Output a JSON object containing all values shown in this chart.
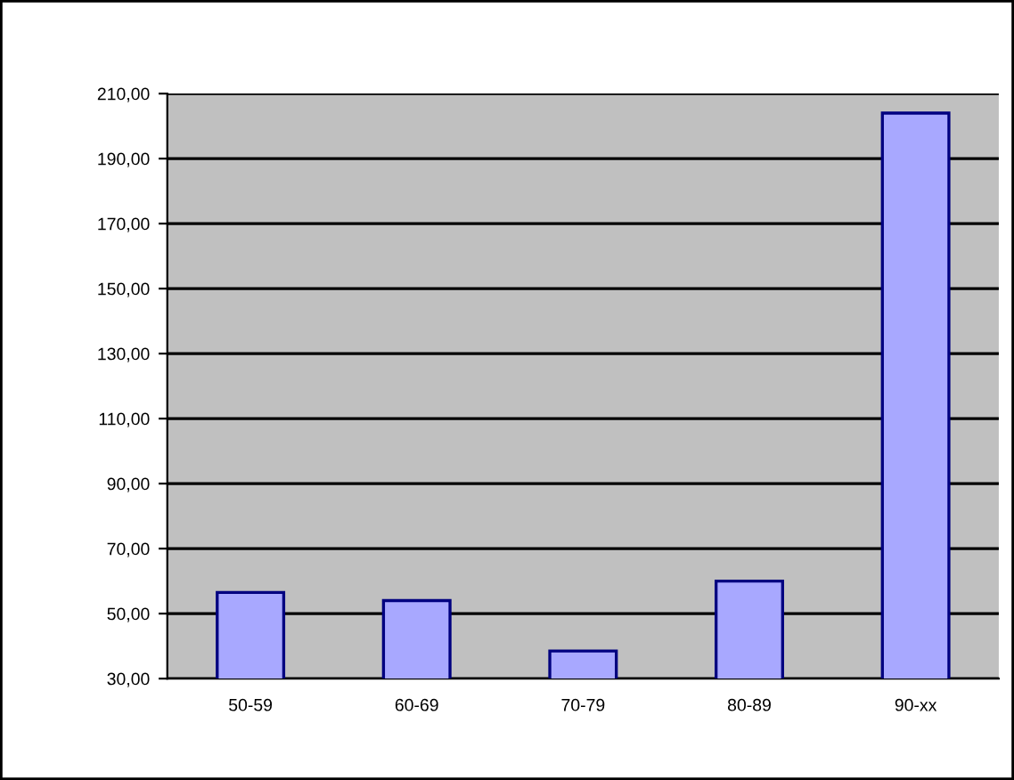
{
  "chart_data": {
    "type": "bar",
    "categories": [
      "50-59",
      "60-69",
      "70-79",
      "80-89",
      "90-xx"
    ],
    "values": [
      56.5,
      54,
      38.5,
      60,
      204
    ],
    "color": "#a8a8ff",
    "ylim": [
      30,
      210
    ],
    "yticks": [
      {
        "value": 30,
        "label": "30,00"
      },
      {
        "value": 50,
        "label": "50,00"
      },
      {
        "value": 70,
        "label": "70,00"
      },
      {
        "value": 90,
        "label": "90,00"
      },
      {
        "value": 110,
        "label": "110,00"
      },
      {
        "value": 130,
        "label": "130,00"
      },
      {
        "value": 150,
        "label": "150,00"
      },
      {
        "value": 170,
        "label": "170,00"
      },
      {
        "value": 190,
        "label": "190,00"
      },
      {
        "value": 210,
        "label": "210,00"
      }
    ],
    "grid": "y",
    "legend": false
  }
}
